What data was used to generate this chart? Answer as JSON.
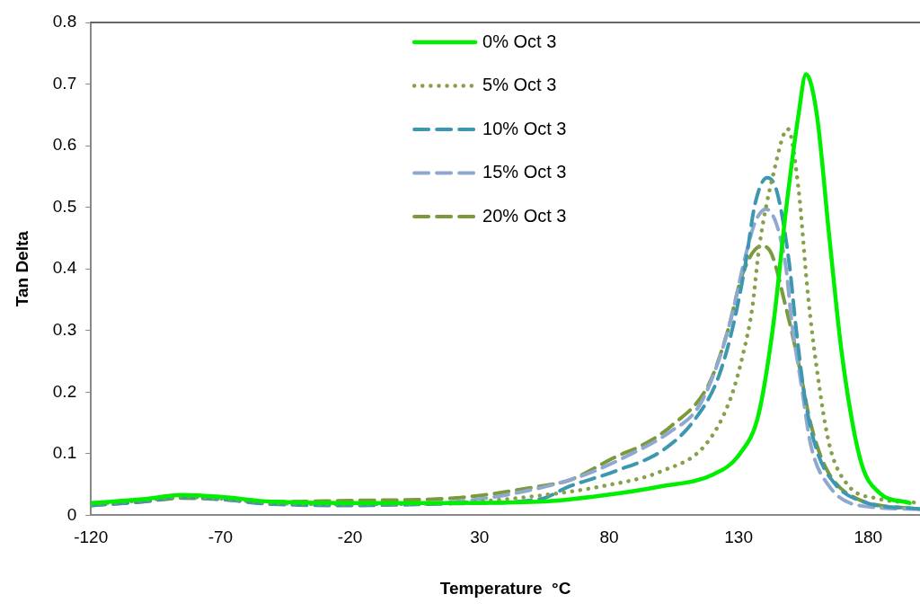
{
  "chart_data": {
    "type": "line",
    "xlabel": "Temperature  °C",
    "ylabel": "Tan Delta",
    "xlim": [
      -120,
      200
    ],
    "xticks": [
      -120,
      -70,
      -20,
      30,
      80,
      130,
      180
    ],
    "ylim": [
      0,
      0.8
    ],
    "yticks": [
      0,
      0.1,
      0.2,
      0.3,
      0.4,
      0.5,
      0.6,
      0.7,
      0.8
    ],
    "grid": false,
    "legend": "top",
    "marker": "none",
    "series": [
      {
        "name": "0% Oct 3",
        "color": "#00ee00",
        "line_style": "solid",
        "x": [
          -120,
          -100,
          -85,
          -70,
          -50,
          -20,
          20,
          53,
          77,
          100,
          120,
          130.5,
          137.7,
          143.4,
          148.4,
          153.1,
          156,
          160.2,
          164.9,
          169.9,
          177,
          184.2,
          196
        ],
        "values": [
          0.02,
          0.026,
          0.033,
          0.03,
          0.022,
          0.02,
          0.02,
          0.022,
          0.032,
          0.047,
          0.066,
          0.1,
          0.164,
          0.31,
          0.5,
          0.65,
          0.716,
          0.65,
          0.456,
          0.26,
          0.09,
          0.037,
          0.02
        ]
      },
      {
        "name": "5% Oct 3",
        "color": "#86a14a",
        "line_style": "dotted",
        "x": [
          -120,
          -100,
          -85,
          -70,
          -50,
          -20,
          20,
          53,
          77,
          100.5,
          117.3,
          126.9,
          131.6,
          135.2,
          138,
          143.4,
          149,
          153.1,
          156.7,
          160.2,
          165,
          172,
          184,
          200
        ],
        "values": [
          0.018,
          0.024,
          0.03,
          0.027,
          0.02,
          0.018,
          0.02,
          0.032,
          0.047,
          0.072,
          0.115,
          0.19,
          0.26,
          0.335,
          0.437,
          0.554,
          0.627,
          0.53,
          0.36,
          0.237,
          0.115,
          0.05,
          0.027,
          0.02
        ]
      },
      {
        "name": "10% Oct 3",
        "color": "#3e97b0",
        "line_style": "dashed",
        "x": [
          -120,
          -100,
          -85,
          -70,
          -50,
          -20,
          20,
          53,
          64.7,
          82.6,
          100.5,
          112.6,
          122,
          128,
          132.7,
          136.3,
          141,
          144.8,
          149.5,
          152,
          155.6,
          160.2,
          167.4,
          178,
          200
        ],
        "values": [
          0.016,
          0.022,
          0.029,
          0.026,
          0.018,
          0.016,
          0.019,
          0.026,
          0.047,
          0.072,
          0.105,
          0.153,
          0.222,
          0.31,
          0.41,
          0.505,
          0.548,
          0.525,
          0.41,
          0.31,
          0.19,
          0.105,
          0.05,
          0.022,
          0.01
        ]
      },
      {
        "name": "15% Oct 3",
        "color": "#8fa8d0",
        "line_style": "dashed",
        "x": [
          -120,
          -100,
          -85,
          -70,
          -50,
          -20,
          20,
          52.9,
          70.8,
          88.7,
          103,
          114.8,
          123,
          128,
          132,
          136.3,
          140.5,
          148,
          150.6,
          154.2,
          157.8,
          165,
          178,
          200
        ],
        "values": [
          0.018,
          0.024,
          0.03,
          0.026,
          0.019,
          0.018,
          0.022,
          0.044,
          0.066,
          0.1,
          0.134,
          0.178,
          0.26,
          0.335,
          0.41,
          0.475,
          0.497,
          0.41,
          0.31,
          0.212,
          0.115,
          0.047,
          0.015,
          0.01
        ]
      },
      {
        "name": "20% Oct 3",
        "color": "#7a9a3c",
        "line_style": "dashed",
        "x": [
          -120,
          -100,
          -85,
          -70,
          -50,
          -20,
          20,
          52.9,
          64.7,
          82.6,
          93.3,
          104,
          118.4,
          125.5,
          131.6,
          138.8,
          142,
          148.4,
          153,
          157.8,
          163.8,
          175.6,
          200
        ],
        "values": [
          0.016,
          0.022,
          0.028,
          0.026,
          0.022,
          0.024,
          0.028,
          0.047,
          0.057,
          0.095,
          0.115,
          0.145,
          0.212,
          0.295,
          0.393,
          0.437,
          0.43,
          0.335,
          0.25,
          0.149,
          0.076,
          0.027,
          0.01
        ]
      }
    ]
  }
}
